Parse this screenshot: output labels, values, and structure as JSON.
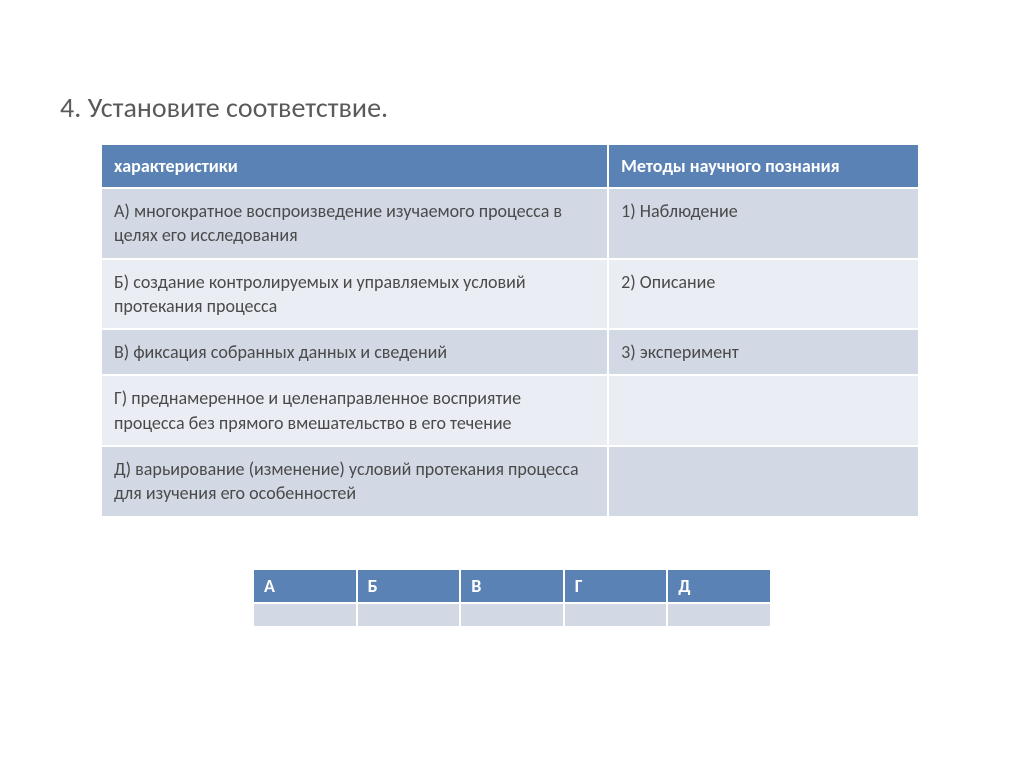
{
  "title": "4. Установите соответствие.",
  "main_table": {
    "headers": {
      "left": "характеристики",
      "right": "Методы научного познания"
    },
    "rows": [
      {
        "left": "А) многократное воспроизведение изучаемого процесса в целях его исследования",
        "right": "1)   Наблюдение"
      },
      {
        "left": "Б) создание контролируемых и управляемых условий протекания процесса",
        "right": "2) Описание"
      },
      {
        "left": "В) фиксация собранных данных и сведений",
        "right": "3) эксперимент"
      },
      {
        "left": "Г) преднамеренное и целенаправленное восприятие процесса без прямого вмешательство в его течение",
        "right": ""
      },
      {
        "left": "Д) варьирование (изменение) условий протекания процесса для изучения его особенностей",
        "right": ""
      }
    ],
    "header_bg": "#5a82b4",
    "header_fg": "#ffffff",
    "row_odd_bg": "#d2d9e4",
    "row_even_bg": "#eaedf3",
    "text_color": "#4a4a4a",
    "border_color": "#ffffff",
    "font_size_header": 18,
    "font_size_cell": 18
  },
  "answer_table": {
    "headers": [
      "А",
      "Б",
      "В",
      "Г",
      "Д"
    ],
    "values": [
      "",
      "",
      "",
      "",
      ""
    ],
    "header_bg": "#5a82b4",
    "header_fg": "#ffffff",
    "cell_bg": "#d2d9e4",
    "border_color": "#ffffff"
  },
  "page_bg": "#ffffff",
  "title_color": "#5a5a5a",
  "title_fontsize": 28
}
